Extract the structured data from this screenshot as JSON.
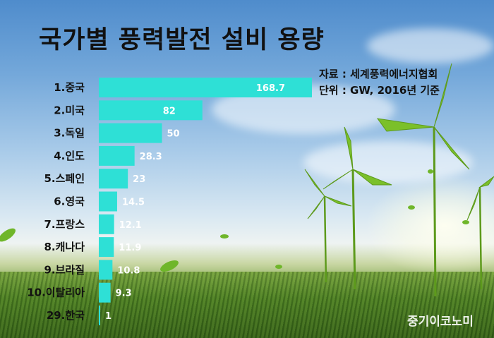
{
  "title": "국가별 풍력발전 설비 용량",
  "source_lines": [
    "자료 : 세계풍력에너지협회",
    "단위 : GW, 2016년 기준"
  ],
  "credit": "중기이코노미",
  "colors": {
    "bar": "#2ee0d6",
    "inner_label": "#ffffff",
    "outer_label": "#ffffff"
  },
  "chart_data": {
    "type": "bar",
    "orientation": "horizontal",
    "title": "국가별 풍력발전 설비 용량",
    "unit": "GW",
    "categories": [
      "1.중국",
      "2.미국",
      "3.독일",
      "4.인도",
      "5.스페인",
      "6.영국",
      "7.프랑스",
      "8.캐나다",
      "9.브라질",
      "10.이탈리아",
      "29.한국"
    ],
    "values": [
      168.7,
      82,
      50,
      28.3,
      23,
      14.5,
      12.1,
      11.9,
      10.8,
      9.3,
      1
    ],
    "value_labels": [
      "168.7",
      "82",
      "50",
      "28.3",
      "23",
      "14.5",
      "12.1",
      "11.9",
      "10.8",
      "9.3",
      "1"
    ],
    "grid": false,
    "legend": "none"
  }
}
